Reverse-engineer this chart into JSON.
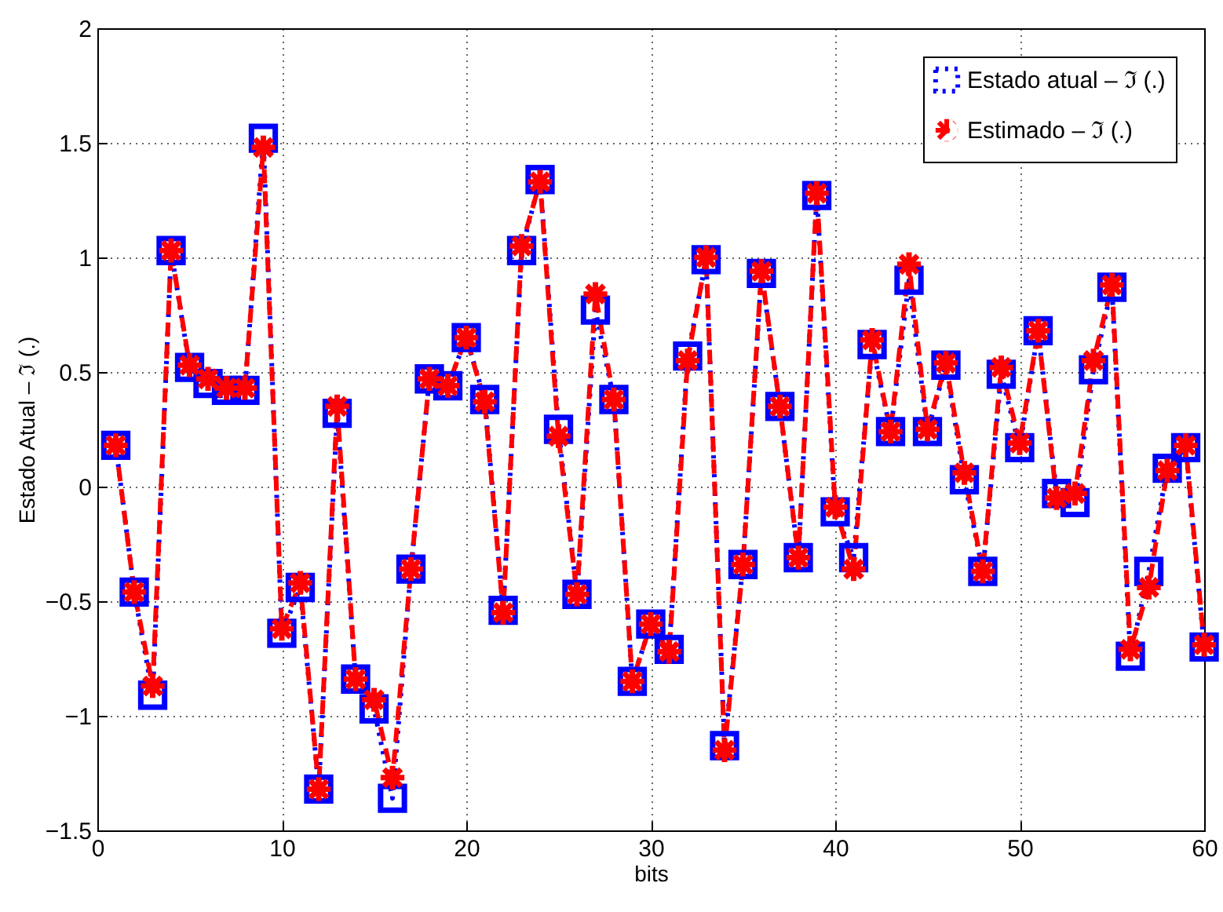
{
  "chart_data": {
    "type": "line",
    "xlabel": "bits",
    "ylabel": "Estado Atual – ℑ (.)",
    "x": [
      1,
      2,
      3,
      4,
      5,
      6,
      7,
      8,
      9,
      10,
      11,
      12,
      13,
      14,
      15,
      16,
      17,
      18,
      19,
      20,
      21,
      22,
      23,
      24,
      25,
      26,
      27,
      28,
      29,
      30,
      31,
      32,
      33,
      34,
      35,
      36,
      37,
      38,
      39,
      40,
      41,
      42,
      43,
      44,
      45,
      46,
      47,
      48,
      49,
      50,
      51,
      52,
      53,
      54,
      55,
      56,
      57,
      58,
      59,
      60
    ],
    "series": [
      {
        "name": "Estado atual – ℑ (.)",
        "color": "#0000ff",
        "marker": "square",
        "line_style": "dotted",
        "values": [
          0.18,
          -0.46,
          -0.91,
          1.03,
          0.52,
          0.45,
          0.42,
          0.42,
          1.52,
          -0.64,
          -0.44,
          -1.32,
          0.32,
          -0.84,
          -0.97,
          -1.36,
          -0.36,
          0.47,
          0.44,
          0.65,
          0.38,
          -0.54,
          1.03,
          1.34,
          0.25,
          -0.47,
          0.77,
          0.38,
          -0.85,
          -0.6,
          -0.71,
          0.57,
          0.99,
          -1.13,
          -0.34,
          0.93,
          0.35,
          -0.31,
          1.27,
          -0.11,
          -0.31,
          0.62,
          0.24,
          0.9,
          0.24,
          0.53,
          0.03,
          -0.37,
          0.49,
          0.17,
          0.68,
          -0.03,
          -0.07,
          0.51,
          0.87,
          -0.74,
          -0.37,
          0.08,
          0.17,
          -0.7
        ]
      },
      {
        "name": "Estimado – ℑ (.)",
        "color": "#ff0000",
        "marker": "cross",
        "line_style": "dashed",
        "values": [
          0.18,
          -0.46,
          -0.87,
          1.03,
          0.53,
          0.47,
          0.43,
          0.43,
          1.48,
          -0.62,
          -0.42,
          -1.32,
          0.35,
          -0.84,
          -0.93,
          -1.27,
          -0.36,
          0.47,
          0.44,
          0.65,
          0.37,
          -0.55,
          1.05,
          1.33,
          0.22,
          -0.47,
          0.84,
          0.38,
          -0.85,
          -0.6,
          -0.72,
          0.55,
          1.0,
          -1.15,
          -0.34,
          0.94,
          0.35,
          -0.31,
          1.28,
          -0.09,
          -0.36,
          0.64,
          0.24,
          0.97,
          0.25,
          0.54,
          0.06,
          -0.37,
          0.52,
          0.19,
          0.68,
          -0.05,
          -0.03,
          0.55,
          0.88,
          -0.71,
          -0.44,
          0.07,
          0.18,
          -0.69
        ]
      }
    ],
    "xlim": [
      0,
      60
    ],
    "xticks": [
      0,
      10,
      20,
      30,
      40,
      50,
      60
    ],
    "ylim": [
      -1.5,
      2
    ],
    "yticks": [
      -1.5,
      -1,
      -0.5,
      0,
      0.5,
      1,
      1.5,
      2
    ],
    "grid": true,
    "legend": "top right"
  }
}
